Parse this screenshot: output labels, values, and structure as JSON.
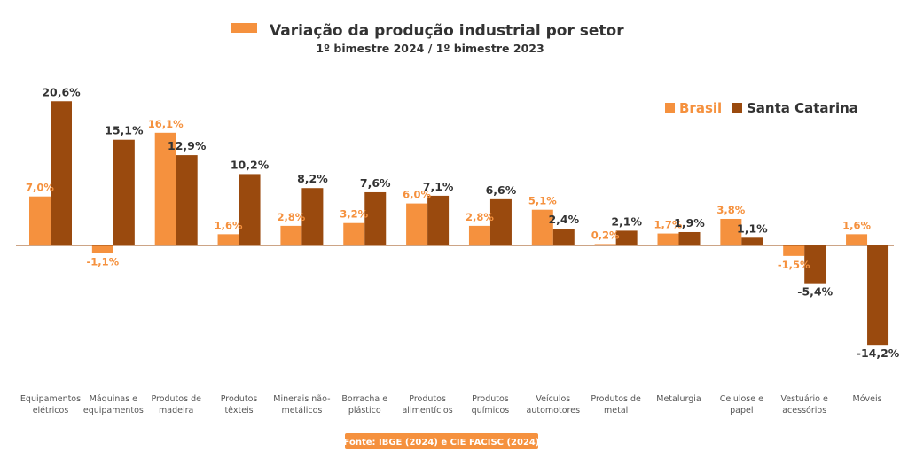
{
  "colors": {
    "brasil": "#F5913E",
    "santa_catarina": "#9A4A0E",
    "text_dark": "#333333",
    "axis": "#9A4A0E"
  },
  "legend": {
    "title_swatch": "Variação da produção industrial por setor"
  },
  "chart_data": {
    "type": "bar",
    "title": "Variação da produção industrial por setor",
    "subtitle": "1º bimestre 2024 / 1º bimestre 2023",
    "categories": [
      [
        "Equipamentos",
        "elétricos"
      ],
      [
        "Máquinas e",
        "equipamentos"
      ],
      [
        "Produtos de",
        "madeira"
      ],
      [
        "Produtos",
        "têxteis"
      ],
      [
        "Minerais não-",
        "metálicos"
      ],
      [
        "Borracha e",
        "plástico"
      ],
      [
        "Produtos",
        "alimentícios"
      ],
      [
        "Produtos",
        "químicos"
      ],
      [
        "Veículos",
        "automotores"
      ],
      [
        "Produtos de",
        "metal"
      ],
      [
        "Metalurgia"
      ],
      [
        "Celulose e",
        "papel"
      ],
      [
        "Vestuário e",
        "acessórios"
      ],
      [
        "Móveis"
      ]
    ],
    "series": [
      {
        "name": "Brasil",
        "values": [
          7.0,
          -1.1,
          16.1,
          1.6,
          2.8,
          3.2,
          6.0,
          2.8,
          5.1,
          0.2,
          1.7,
          3.8,
          -1.5,
          1.6
        ],
        "labels": [
          "7,0%",
          "-1,1%",
          "16,1%",
          "1,6%",
          "2,8%",
          "3,2%",
          "6,0%",
          "2,8%",
          "5,1%",
          "0,2%",
          "1,7%",
          "3,8%",
          "-1,5%",
          "1,6%"
        ]
      },
      {
        "name": "Santa Catarina",
        "values": [
          20.6,
          15.1,
          12.9,
          10.2,
          8.2,
          7.6,
          7.1,
          6.6,
          2.4,
          2.1,
          1.9,
          1.1,
          -5.4,
          -14.2
        ],
        "labels": [
          "20,6%",
          "15,1%",
          "12,9%",
          "10,2%",
          "8,2%",
          "7,6%",
          "7,1%",
          "6,6%",
          "2,4%",
          "2,1%",
          "1,9%",
          "1,1%",
          "-5,4%",
          "-14,2%"
        ]
      }
    ],
    "legend_position": "top-right",
    "grid": false
  },
  "source": "Fonte: IBGE (2024) e CIE FACISC (2024)"
}
